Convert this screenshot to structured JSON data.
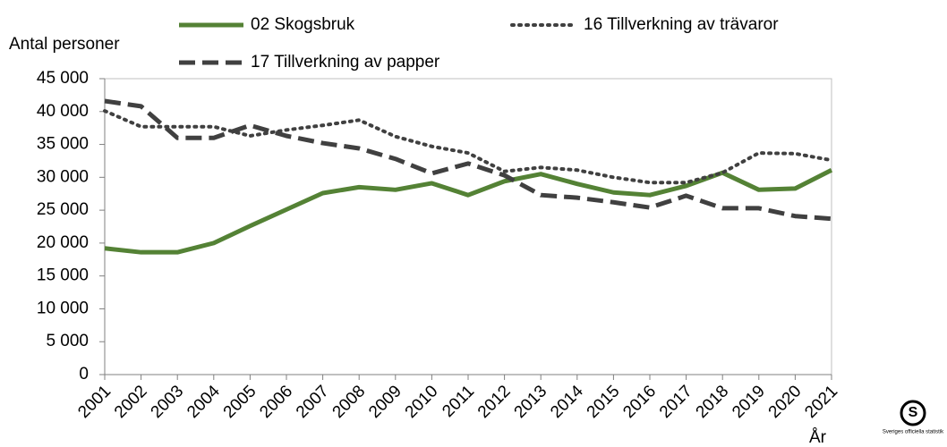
{
  "chart_data": {
    "type": "line",
    "y_label": "Antal personer",
    "x_label": "År",
    "logo_text": "Sveriges officiella statistik",
    "categories": [
      "2001",
      "2002",
      "2003",
      "2004",
      "2005",
      "2006",
      "2007",
      "2008",
      "2009",
      "2010",
      "2011",
      "2012",
      "2013",
      "2014",
      "2015",
      "2016",
      "2017",
      "2018",
      "2019",
      "2020",
      "2021"
    ],
    "series": [
      {
        "name": "02 Skogsbruk",
        "color": "#548235",
        "dash": "solid",
        "values": [
          19200,
          18600,
          18600,
          20000,
          22600,
          25100,
          27600,
          28500,
          28100,
          29100,
          27300,
          29400,
          30500,
          29000,
          27700,
          27300,
          28700,
          30700,
          28100,
          28300,
          31100
        ]
      },
      {
        "name": "16 Tillverkning av trävaror",
        "color": "#404040",
        "dash": "dotted",
        "values": [
          40100,
          37700,
          37700,
          37700,
          36300,
          37200,
          37900,
          38700,
          36200,
          34700,
          33700,
          30900,
          31500,
          31100,
          30000,
          29200,
          29200,
          30700,
          33700,
          33600,
          32600
        ]
      },
      {
        "name": "17 Tillverkning av papper",
        "color": "#404040",
        "dash": "dashed",
        "values": [
          41600,
          40800,
          36000,
          36000,
          37900,
          36300,
          35200,
          34400,
          32800,
          30600,
          32100,
          30300,
          27300,
          26900,
          26200,
          25400,
          27200,
          25300,
          25300,
          24100,
          23700
        ]
      }
    ],
    "ylim": [
      0,
      45000
    ],
    "yticks": [
      0,
      {
        "value": 5000,
        "label": "5 000"
      },
      {
        "value": 10000,
        "label": "10 000"
      },
      {
        "value": 15000,
        "label": "15 000"
      },
      {
        "value": 20000,
        "label": "20 000"
      },
      {
        "value": 25000,
        "label": "25 000"
      },
      {
        "value": 30000,
        "label": "30 000"
      },
      {
        "value": 35000,
        "label": "35 000"
      },
      {
        "value": 40000,
        "label": "40 000"
      },
      {
        "value": 45000,
        "label": "45 000"
      }
    ],
    "grid": false
  }
}
